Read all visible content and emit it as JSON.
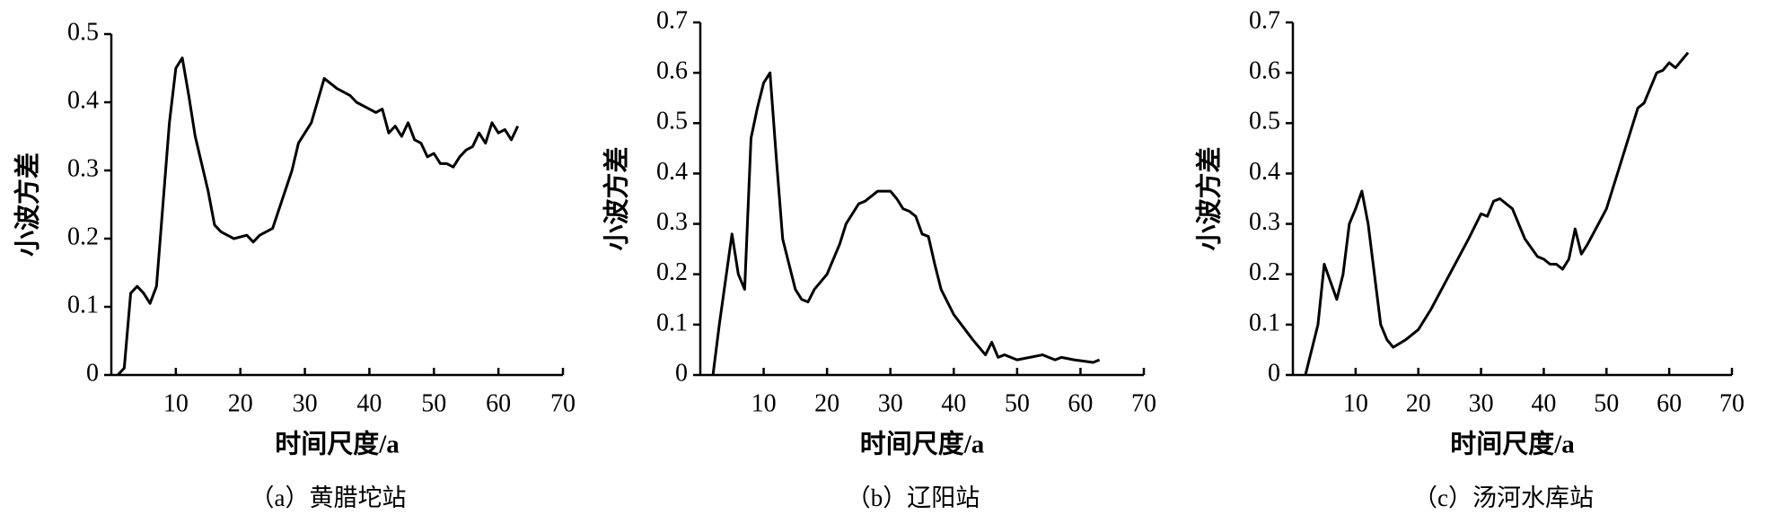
{
  "chart_data": [
    {
      "type": "line",
      "xlabel": "时间尺度/a",
      "ylabel": "小波方差",
      "caption": "（a）黄腊坨站",
      "xlim": [
        0,
        70
      ],
      "xticks": [
        10,
        20,
        30,
        40,
        50,
        60,
        70
      ],
      "ylim": [
        0,
        0.5
      ],
      "yticks": [
        0,
        0.1,
        0.2,
        0.3,
        0.4,
        0.5
      ],
      "series": [
        {
          "color": "#000000",
          "x": [
            1,
            2,
            3,
            4,
            5,
            6,
            7,
            8,
            9,
            10,
            11,
            12,
            13,
            14,
            15,
            16,
            17,
            19,
            21,
            22,
            23,
            25,
            28,
            29,
            31,
            33,
            35,
            37,
            38,
            40,
            41,
            42,
            43,
            44,
            45,
            46,
            47,
            48,
            49,
            50,
            51,
            52,
            53,
            54,
            55,
            56,
            57,
            58,
            59,
            60,
            61,
            62,
            63
          ],
          "values": [
            0,
            0.01,
            0.12,
            0.13,
            0.12,
            0.105,
            0.13,
            0.25,
            0.37,
            0.45,
            0.465,
            0.41,
            0.35,
            0.31,
            0.27,
            0.22,
            0.21,
            0.2,
            0.205,
            0.195,
            0.205,
            0.215,
            0.3,
            0.34,
            0.37,
            0.435,
            0.42,
            0.41,
            0.4,
            0.39,
            0.385,
            0.39,
            0.355,
            0.365,
            0.35,
            0.37,
            0.345,
            0.34,
            0.32,
            0.325,
            0.31,
            0.31,
            0.305,
            0.32,
            0.33,
            0.335,
            0.355,
            0.34,
            0.37,
            0.355,
            0.36,
            0.345,
            0.365
          ]
        }
      ]
    },
    {
      "type": "line",
      "xlabel": "时间尺度/a",
      "ylabel": "小波方差",
      "caption": "（b）辽阳站",
      "xlim": [
        0,
        70
      ],
      "xticks": [
        10,
        20,
        30,
        40,
        50,
        60,
        70
      ],
      "ylim": [
        0,
        0.7
      ],
      "yticks": [
        0,
        0.1,
        0.2,
        0.3,
        0.4,
        0.5,
        0.6,
        0.7
      ],
      "series": [
        {
          "color": "#000000",
          "x": [
            2,
            3,
            5,
            6,
            7,
            8,
            9,
            10,
            11,
            12,
            13,
            14,
            15,
            16,
            17,
            18,
            20,
            22,
            23,
            25,
            26,
            27,
            28,
            30,
            31,
            32,
            33,
            34,
            35,
            36,
            37,
            38,
            40,
            43,
            45,
            46,
            47,
            48,
            50,
            52,
            54,
            55,
            56,
            57,
            59,
            62,
            63
          ],
          "values": [
            0,
            0.1,
            0.28,
            0.2,
            0.17,
            0.47,
            0.53,
            0.58,
            0.6,
            0.43,
            0.27,
            0.22,
            0.17,
            0.15,
            0.145,
            0.17,
            0.2,
            0.26,
            0.3,
            0.34,
            0.345,
            0.355,
            0.365,
            0.365,
            0.35,
            0.33,
            0.325,
            0.315,
            0.28,
            0.275,
            0.22,
            0.17,
            0.12,
            0.07,
            0.04,
            0.065,
            0.035,
            0.04,
            0.03,
            0.035,
            0.04,
            0.035,
            0.03,
            0.035,
            0.03,
            0.025,
            0.03
          ]
        }
      ]
    },
    {
      "type": "line",
      "xlabel": "时间尺度/a",
      "ylabel": "小波方差",
      "caption": "（c）汤河水库站",
      "xlim": [
        0,
        70
      ],
      "xticks": [
        10,
        20,
        30,
        40,
        50,
        60,
        70
      ],
      "ylim": [
        0,
        0.7
      ],
      "yticks": [
        0,
        0.1,
        0.2,
        0.3,
        0.4,
        0.5,
        0.6,
        0.7
      ],
      "series": [
        {
          "color": "#000000",
          "x": [
            2,
            4,
            5,
            7,
            8,
            9,
            10,
            11,
            12,
            13,
            14,
            15,
            16,
            18,
            20,
            22,
            25,
            28,
            30,
            31,
            32,
            33,
            35,
            37,
            39,
            40,
            41,
            42,
            43,
            44,
            45,
            46,
            47,
            50,
            53,
            55,
            56,
            58,
            59,
            60,
            61,
            62,
            63
          ],
          "values": [
            0,
            0.1,
            0.22,
            0.15,
            0.2,
            0.3,
            0.33,
            0.365,
            0.3,
            0.2,
            0.1,
            0.07,
            0.055,
            0.07,
            0.09,
            0.13,
            0.2,
            0.27,
            0.32,
            0.315,
            0.345,
            0.35,
            0.33,
            0.27,
            0.235,
            0.23,
            0.22,
            0.22,
            0.21,
            0.23,
            0.29,
            0.24,
            0.26,
            0.33,
            0.45,
            0.53,
            0.54,
            0.6,
            0.605,
            0.62,
            0.61,
            0.625,
            0.64
          ]
        }
      ]
    }
  ]
}
